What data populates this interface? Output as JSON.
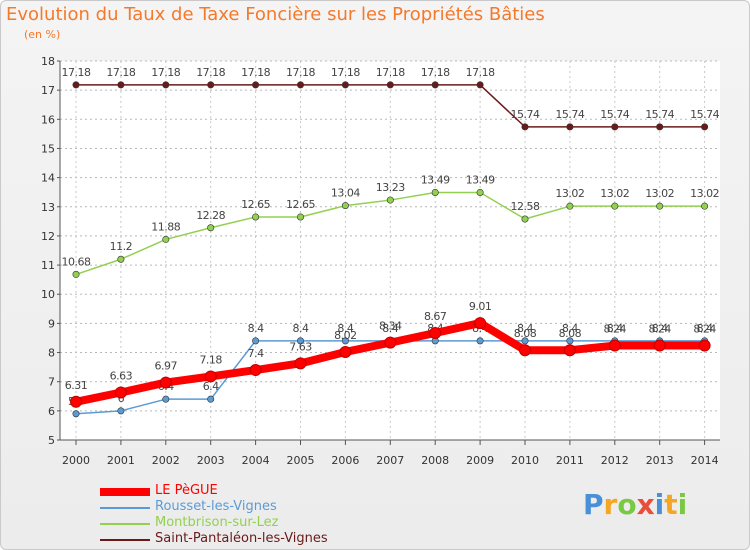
{
  "chart_data": {
    "type": "line",
    "title": "Evolution du Taux de Taxe Foncière sur les Propriétés Bâties",
    "unit_label": "(en %)",
    "xlabel": "",
    "ylabel": "",
    "ylim": [
      5,
      18
    ],
    "y_ticks": [
      5,
      6,
      7,
      8,
      9,
      10,
      11,
      12,
      13,
      14,
      15,
      16,
      17,
      18
    ],
    "categories": [
      "2000",
      "2001",
      "2002",
      "2003",
      "2004",
      "2005",
      "2006",
      "2007",
      "2008",
      "2009",
      "2010",
      "2011",
      "2012",
      "2013",
      "2014"
    ],
    "grid": true,
    "legend_position": "bottom-left",
    "series": [
      {
        "name": "Saint-Pantaléon-les-Vignes",
        "color": "#6b1a1a",
        "width": 1.5,
        "values": [
          17.18,
          17.18,
          17.18,
          17.18,
          17.18,
          17.18,
          17.18,
          17.18,
          17.18,
          17.18,
          15.74,
          15.74,
          15.74,
          15.74,
          15.74
        ],
        "labels": [
          "17.18",
          "17.18",
          "17.18",
          "17.18",
          "17.18",
          "17.18",
          "17.18",
          "17.18",
          "17.18",
          "17.18",
          "15.74",
          "15.74",
          "15.74",
          "15.74",
          "15.74"
        ]
      },
      {
        "name": "Montbrison-sur-Lez",
        "color": "#92d050",
        "width": 1.5,
        "values": [
          10.68,
          11.2,
          11.88,
          12.28,
          12.65,
          12.65,
          13.04,
          13.23,
          13.49,
          13.49,
          12.58,
          13.02,
          13.02,
          13.02,
          13.02
        ],
        "labels": [
          "10.68",
          "11.2",
          "11.88",
          "12.28",
          "12.65",
          "12.65",
          "13.04",
          "13.23",
          "13.49",
          "13.49",
          "12.58",
          "13.02",
          "13.02",
          "13.02",
          "13.02"
        ]
      },
      {
        "name": "Rousset-les-Vignes",
        "color": "#5b9bd5",
        "width": 1.5,
        "values": [
          5.9,
          6,
          6.4,
          6.4,
          8.4,
          8.4,
          8.4,
          8.4,
          8.4,
          8.4,
          8.4,
          8.4,
          8.4,
          8.4,
          8.4
        ],
        "labels": [
          "5.9",
          "6",
          "6.4",
          "6.4",
          "8.4",
          "8.4",
          "8.4",
          "8.4",
          "8.4",
          "8.4",
          "8.4",
          "8.4",
          "8.4",
          "8.4",
          "8.4"
        ]
      },
      {
        "name": "LE PèGUE",
        "color": "#ff0000",
        "width": 8,
        "values": [
          6.31,
          6.63,
          6.97,
          7.18,
          7.4,
          7.63,
          8.02,
          8.34,
          8.67,
          9.01,
          8.08,
          8.08,
          8.24,
          8.24,
          8.24
        ],
        "labels": [
          "6.31",
          "6.63",
          "6.97",
          "7.18",
          "7.4",
          "7.63",
          "8.02",
          "8.34",
          "8.67",
          "9.01",
          "8.08",
          "8.08",
          "8.24",
          "8.24",
          "8.24"
        ]
      }
    ]
  },
  "legend_items": [
    {
      "name": "LE PèGUE",
      "color": "#ff0000"
    },
    {
      "name": "Rousset-les-Vignes",
      "color": "#5b9bd5"
    },
    {
      "name": "Montbrison-sur-Lez",
      "color": "#92d050"
    },
    {
      "name": "Saint-Pantaléon-les-Vignes",
      "color": "#6b1a1a"
    }
  ],
  "logo": {
    "text": "Proxiti",
    "letter_colors": [
      "#4a90d9",
      "#f5a623",
      "#7ac943",
      "#e94e3c",
      "#4a90d9",
      "#f5a623",
      "#7ac943"
    ]
  }
}
